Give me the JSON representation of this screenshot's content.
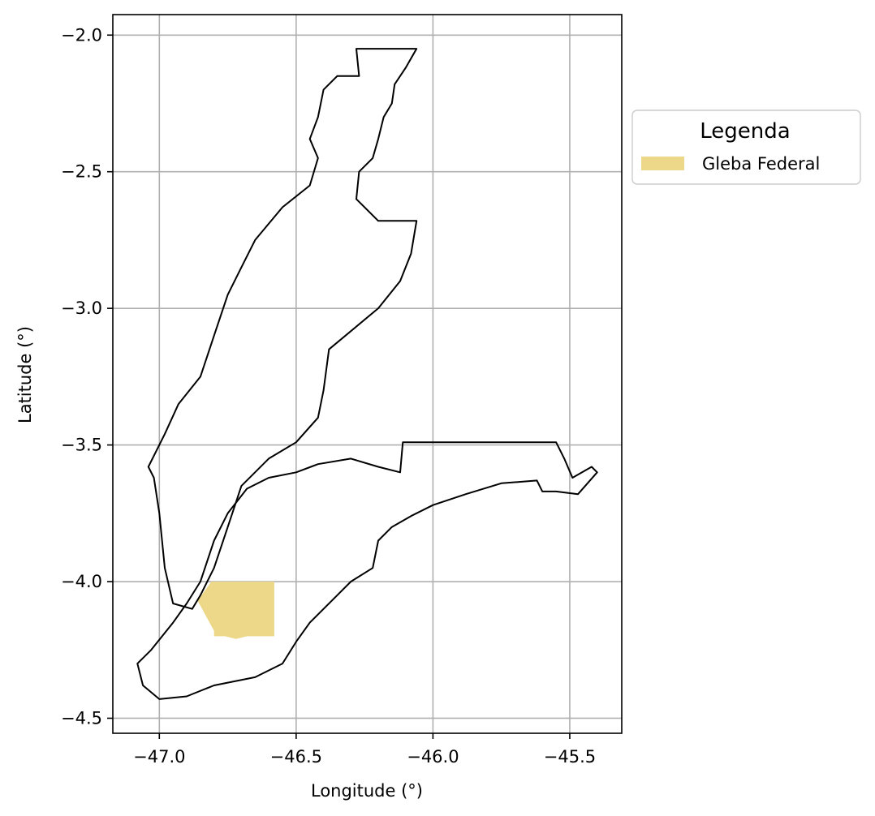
{
  "chart_data": {
    "type": "map",
    "xlabel": "Longitude (°)",
    "ylabel": "Latitude (°)",
    "xlim": [
      -47.17,
      -45.31
    ],
    "ylim": [
      -4.555,
      -1.925
    ],
    "x_ticks": [
      -47.0,
      -46.5,
      -46.0,
      -45.5
    ],
    "x_tick_labels": [
      "−47.0",
      "−46.5",
      "−46.0",
      "−45.5"
    ],
    "y_ticks": [
      -2.0,
      -2.5,
      -3.0,
      -3.5,
      -4.0,
      -4.5
    ],
    "y_tick_labels": [
      "−2.0",
      "−2.5",
      "−3.0",
      "−3.5",
      "−4.0",
      "−4.5"
    ],
    "grid": true,
    "legend": {
      "title": "Legenda",
      "position": "outside-upper-right",
      "entries": [
        {
          "label": "Gleba Federal",
          "color": "#ecd888"
        }
      ]
    },
    "layers": [
      {
        "kind": "outline",
        "color": "#000000",
        "coords": [
          [
            -46.28,
            -2.05
          ],
          [
            -46.06,
            -2.05
          ],
          [
            -46.1,
            -2.12
          ],
          [
            -46.14,
            -2.18
          ],
          [
            -46.15,
            -2.25
          ],
          [
            -46.18,
            -2.3
          ],
          [
            -46.2,
            -2.38
          ],
          [
            -46.22,
            -2.45
          ],
          [
            -46.27,
            -2.5
          ],
          [
            -46.28,
            -2.6
          ],
          [
            -46.2,
            -2.68
          ],
          [
            -46.06,
            -2.68
          ],
          [
            -46.08,
            -2.8
          ],
          [
            -46.12,
            -2.9
          ],
          [
            -46.2,
            -3.0
          ],
          [
            -46.38,
            -3.15
          ],
          [
            -46.4,
            -3.3
          ],
          [
            -46.42,
            -3.4
          ],
          [
            -46.5,
            -3.49
          ],
          [
            -46.6,
            -3.55
          ],
          [
            -46.7,
            -3.65
          ],
          [
            -46.75,
            -3.8
          ],
          [
            -46.8,
            -3.95
          ],
          [
            -46.85,
            -4.05
          ],
          [
            -46.88,
            -4.1
          ],
          [
            -46.95,
            -4.08
          ],
          [
            -46.98,
            -3.95
          ],
          [
            -47.0,
            -3.75
          ],
          [
            -47.02,
            -3.62
          ],
          [
            -47.04,
            -3.58
          ],
          [
            -46.98,
            -3.46
          ],
          [
            -46.93,
            -3.35
          ],
          [
            -46.85,
            -3.25
          ],
          [
            -46.8,
            -3.1
          ],
          [
            -46.75,
            -2.95
          ],
          [
            -46.7,
            -2.85
          ],
          [
            -46.65,
            -2.75
          ],
          [
            -46.55,
            -2.63
          ],
          [
            -46.45,
            -2.55
          ],
          [
            -46.42,
            -2.45
          ],
          [
            -46.45,
            -2.38
          ],
          [
            -46.42,
            -2.3
          ],
          [
            -46.4,
            -2.2
          ],
          [
            -46.35,
            -2.15
          ],
          [
            -46.27,
            -2.15
          ],
          [
            -46.28,
            -2.05
          ]
        ]
      },
      {
        "kind": "outline",
        "color": "#000000",
        "coords": [
          [
            -46.11,
            -3.49
          ],
          [
            -45.55,
            -3.49
          ],
          [
            -45.52,
            -3.55
          ],
          [
            -45.49,
            -3.62
          ],
          [
            -45.42,
            -3.58
          ],
          [
            -45.4,
            -3.6
          ],
          [
            -45.47,
            -3.68
          ],
          [
            -45.55,
            -3.67
          ],
          [
            -45.6,
            -3.67
          ],
          [
            -45.62,
            -3.63
          ],
          [
            -45.75,
            -3.64
          ],
          [
            -45.88,
            -3.68
          ],
          [
            -46.0,
            -3.72
          ],
          [
            -46.08,
            -3.76
          ],
          [
            -46.15,
            -3.8
          ],
          [
            -46.2,
            -3.85
          ],
          [
            -46.22,
            -3.95
          ],
          [
            -46.3,
            -4.0
          ],
          [
            -46.35,
            -4.05
          ],
          [
            -46.45,
            -4.15
          ],
          [
            -46.5,
            -4.22
          ],
          [
            -46.55,
            -4.3
          ],
          [
            -46.65,
            -4.35
          ],
          [
            -46.8,
            -4.38
          ],
          [
            -46.9,
            -4.42
          ],
          [
            -47.0,
            -4.43
          ],
          [
            -47.06,
            -4.38
          ],
          [
            -47.08,
            -4.3
          ],
          [
            -47.03,
            -4.25
          ],
          [
            -46.95,
            -4.15
          ],
          [
            -46.9,
            -4.08
          ],
          [
            -46.85,
            -4.0
          ],
          [
            -46.8,
            -3.85
          ],
          [
            -46.75,
            -3.75
          ],
          [
            -46.68,
            -3.66
          ],
          [
            -46.6,
            -3.62
          ],
          [
            -46.5,
            -3.6
          ],
          [
            -46.42,
            -3.57
          ],
          [
            -46.3,
            -3.55
          ],
          [
            -46.2,
            -3.58
          ],
          [
            -46.12,
            -3.6
          ],
          [
            -46.11,
            -3.49
          ]
        ]
      },
      {
        "kind": "polygon",
        "name": "Gleba Federal",
        "color": "#ecd888",
        "coords": [
          [
            -46.81,
            -4.0
          ],
          [
            -46.58,
            -4.0
          ],
          [
            -46.58,
            -4.2
          ],
          [
            -46.68,
            -4.2
          ],
          [
            -46.72,
            -4.21
          ],
          [
            -46.76,
            -4.2
          ],
          [
            -46.8,
            -4.2
          ],
          [
            -46.8,
            -4.18
          ],
          [
            -46.86,
            -4.07
          ],
          [
            -46.81,
            -4.0
          ]
        ]
      }
    ]
  }
}
